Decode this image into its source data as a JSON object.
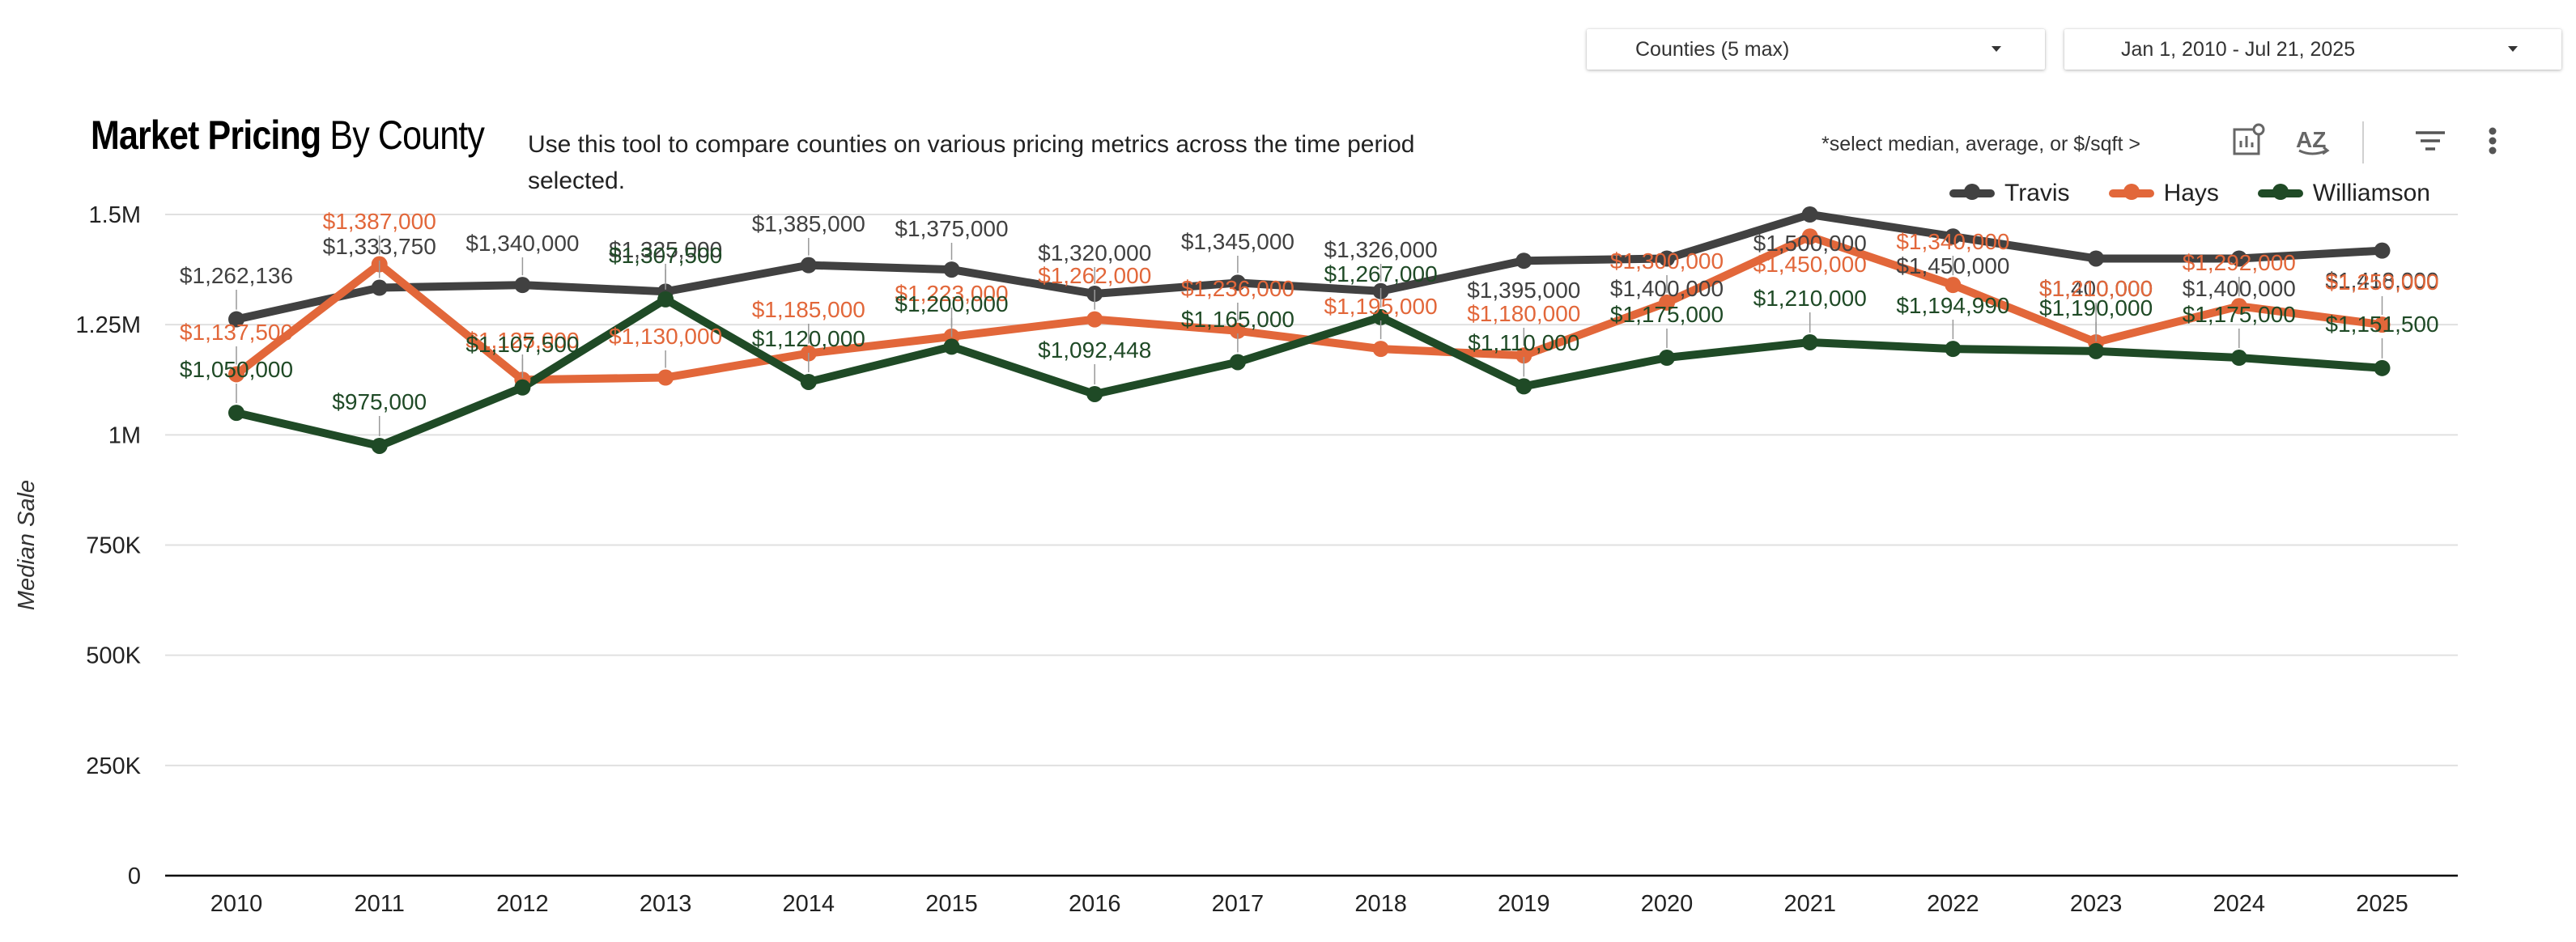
{
  "controls": {
    "counties_label": "Counties (5 max)",
    "date_range_label": "Jan 1, 2010 - Jul 21, 2025",
    "select_hint": "*select median, average, or $/sqft  >"
  },
  "header": {
    "title_bold": "Market Pricing",
    "title_rest": " By County",
    "description": "Use this tool to compare counties on various pricing metrics across the time period selected."
  },
  "colors": {
    "travis": "#414141",
    "hays": "#e2673a",
    "williamson": "#1f4a26",
    "grid": "#e0e0e0",
    "axis": "#000000"
  },
  "chart_data": {
    "type": "line",
    "title": "Market Pricing By County",
    "xlabel": "",
    "ylabel": "Median Sale",
    "ylim": [
      0,
      1500000
    ],
    "yticks": [
      0,
      250000,
      500000,
      750000,
      1000000,
      1250000,
      1500000
    ],
    "ytick_labels": [
      "0",
      "250K",
      "500K",
      "750K",
      "1M",
      "1.25M",
      "1.5M"
    ],
    "categories": [
      "2010",
      "2011",
      "2012",
      "2013",
      "2014",
      "2015",
      "2016",
      "2017",
      "2018",
      "2019",
      "2020",
      "2021",
      "2022",
      "2023",
      "2024",
      "2025"
    ],
    "legend_position": "top-right",
    "series": [
      {
        "name": "Travis",
        "color": "#414141",
        "values": [
          1262136,
          1333750,
          1340000,
          1325000,
          1385000,
          1375000,
          1320000,
          1345000,
          1326000,
          1395000,
          1400000,
          1500000,
          1450000,
          1400000,
          1400000,
          1418000
        ],
        "labels": [
          "$1,262,136",
          "$1,333,750",
          "$1,340,000",
          "$1,325,000",
          "$1,385,000",
          "$1,375,000",
          "$1,320,000",
          "$1,345,000",
          "$1,326,000",
          "$1,395,000",
          "$1,400,000",
          "$1,500,000",
          "$1,450,000",
          "$1,400,000",
          "$1,400,000",
          "$1,418,000"
        ]
      },
      {
        "name": "Hays",
        "color": "#e2673a",
        "values": [
          1137500,
          1387000,
          1125000,
          1130000,
          1185000,
          1223000,
          1262000,
          1236000,
          1195000,
          1180000,
          1300000,
          1450000,
          1340000,
          1210000,
          1292000,
          1250000
        ],
        "labels": [
          "$1,137,500",
          "$1,387,000",
          "$1,125,000",
          "$1,130,000",
          "$1,185,000",
          "$1,223,000",
          "$1,262,000",
          "$1,236,000",
          "$1,195,000",
          "$1,180,000",
          "$1,300,000",
          "$1,450,000",
          "$1,340,000",
          "$1,210,000",
          "$1,292,000",
          "$1,250,000"
        ]
      },
      {
        "name": "Williamson",
        "color": "#1f4a26",
        "values": [
          1050000,
          975000,
          1107500,
          1307500,
          1120000,
          1200000,
          1092448,
          1165000,
          1267000,
          1110000,
          1175000,
          1210000,
          1194990,
          1190000,
          1175000,
          1151500
        ],
        "labels": [
          "$1,050,000",
          "$975,000",
          "$1,107,500",
          "$1,307,500",
          "$1,120,000",
          "$1,200,000",
          "$1,092,448",
          "$1,165,000",
          "$1,267,000",
          "$1,110,000",
          "$1,175,000",
          "$1,210,000",
          "$1,194,990",
          "$1,190,000",
          "$1,175,000",
          "$1,151,500"
        ]
      }
    ]
  }
}
